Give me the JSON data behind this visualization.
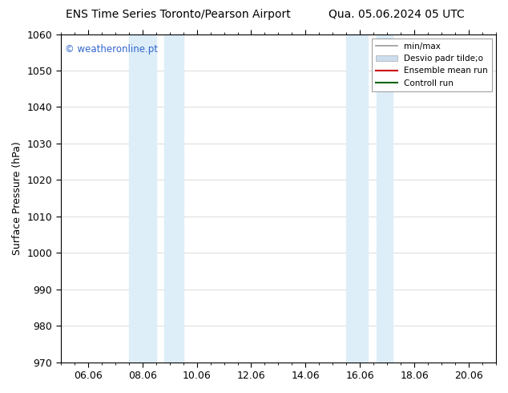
{
  "title_left": "ENS Time Series Toronto/Pearson Airport",
  "title_right": "Qua. 05.06.2024 05 UTC",
  "ylabel": "Surface Pressure (hPa)",
  "ylim": [
    970,
    1060
  ],
  "yticks": [
    970,
    980,
    990,
    1000,
    1010,
    1020,
    1030,
    1040,
    1050,
    1060
  ],
  "xtick_labels": [
    "06.06",
    "08.06",
    "10.06",
    "12.06",
    "14.06",
    "16.06",
    "18.06",
    "20.06"
  ],
  "xtick_positions": [
    1,
    3,
    5,
    7,
    9,
    11,
    13,
    15
  ],
  "xlim": [
    0,
    16
  ],
  "shaded_bands": [
    {
      "x_start": 2.5,
      "x_end": 3.5
    },
    {
      "x_start": 3.8,
      "x_end": 4.5
    },
    {
      "x_start": 10.5,
      "x_end": 11.3
    },
    {
      "x_start": 11.6,
      "x_end": 12.2
    }
  ],
  "shade_color": "#ddeef8",
  "watermark_text": "© weatheronline.pt",
  "watermark_color": "#3366cc",
  "legend_entries": [
    {
      "label": "min/max",
      "color": "#999999",
      "type": "line",
      "linewidth": 1.2
    },
    {
      "label": "Desvio padr tilde;o",
      "color": "#ccddee",
      "type": "patch"
    },
    {
      "label": "Ensemble mean run",
      "color": "#cc0000",
      "type": "line",
      "linewidth": 1.5
    },
    {
      "label": "Controll run",
      "color": "#006600",
      "type": "line",
      "linewidth": 1.5
    }
  ],
  "background_color": "#ffffff",
  "grid_color": "#cccccc",
  "title_fontsize": 10,
  "axis_fontsize": 9,
  "ylabel_fontsize": 9
}
